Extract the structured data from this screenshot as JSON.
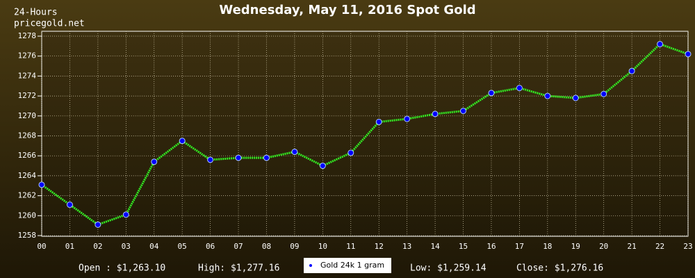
{
  "chart_data": {
    "type": "line",
    "title": "Wednesday, May 11, 2016 Spot Gold",
    "corner_labels": [
      "24-Hours",
      "pricegold.net"
    ],
    "stats": [
      "Open : $1,263.10",
      "High: $1,277.16",
      "Low: $1,259.14",
      "Close: $1,276.16"
    ],
    "categories": [
      "00",
      "01",
      "02",
      "03",
      "04",
      "05",
      "06",
      "07",
      "08",
      "09",
      "10",
      "11",
      "12",
      "13",
      "14",
      "15",
      "16",
      "17",
      "18",
      "19",
      "20",
      "21",
      "22",
      "23"
    ],
    "series": [
      {
        "name": "Gold 24k 1 gram",
        "color": "#33ee22",
        "marker_color": "#0000ff",
        "values": [
          1263.1,
          1261.1,
          1259.1,
          1260.1,
          1265.4,
          1267.5,
          1265.6,
          1265.8,
          1265.8,
          1266.4,
          1265.0,
          1266.3,
          1269.4,
          1269.7,
          1270.2,
          1270.5,
          1272.3,
          1272.8,
          1272.0,
          1271.8,
          1272.2,
          1274.5,
          1277.2,
          1276.2
        ]
      }
    ],
    "ylim": [
      1258,
      1278
    ],
    "yticks": [
      1258,
      1260,
      1262,
      1264,
      1266,
      1268,
      1270,
      1272,
      1274,
      1276,
      1278
    ],
    "grid": true
  }
}
